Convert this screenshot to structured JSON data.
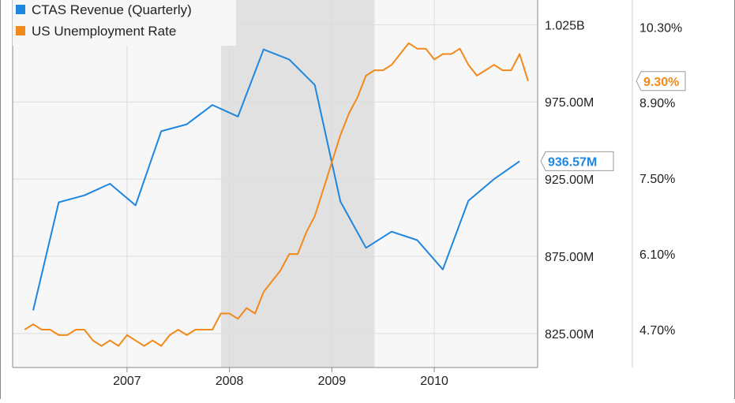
{
  "chart_data": {
    "type": "line",
    "legend": {
      "placement": "top-left",
      "items": [
        {
          "label": "CTAS Revenue (Quarterly)",
          "color": "#1f86e0"
        },
        {
          "label": "US Unemployment Rate",
          "color": "#f28a1b"
        }
      ]
    },
    "recession_shading": {
      "from": "2007-12",
      "to": "2009-06"
    },
    "x_tick_labels": [
      "2007",
      "2008",
      "2009",
      "2010"
    ],
    "x_range": [
      "2006-02",
      "2010-12"
    ],
    "left_axis": {
      "tick_labels": [
        "1.025B",
        "975.00M",
        "925.00M",
        "875.00M",
        "825.00M"
      ],
      "ticks": [
        1025,
        975,
        925,
        875,
        825
      ],
      "ylim_musd": [
        803,
        1041
      ]
    },
    "right_axis": {
      "tick_labels": [
        "10.30%",
        "8.90%",
        "7.50%",
        "6.10%",
        "4.70%"
      ],
      "ticks": [
        10.3,
        8.9,
        7.5,
        6.1,
        4.7
      ],
      "ylim_pct": [
        4.0,
        10.8
      ]
    },
    "series": [
      {
        "name": "CTAS Revenue (Quarterly)",
        "color": "#1f86e0",
        "unit": "USD millions",
        "axis": "left",
        "end_label": "936.57M",
        "points": [
          [
            "2006-02",
            840.0
          ],
          [
            "2006-05",
            910.0
          ],
          [
            "2006-08",
            914.5
          ],
          [
            "2006-11",
            922.0
          ],
          [
            "2007-02",
            908.0
          ],
          [
            "2007-05",
            956.0
          ],
          [
            "2007-08",
            960.5
          ],
          [
            "2007-11",
            973.0
          ],
          [
            "2008-02",
            965.5
          ],
          [
            "2008-05",
            1009.0
          ],
          [
            "2008-08",
            1002.5
          ],
          [
            "2008-11",
            986.0
          ],
          [
            "2009-02",
            910.5
          ],
          [
            "2009-05",
            880.5
          ],
          [
            "2009-08",
            891.0
          ],
          [
            "2009-11",
            885.5
          ],
          [
            "2010-02",
            866.5
          ],
          [
            "2010-05",
            911.0
          ],
          [
            "2010-08",
            925.0
          ],
          [
            "2010-11",
            936.6
          ]
        ]
      },
      {
        "name": "US Unemployment Rate",
        "color": "#f28a1b",
        "unit": "percent",
        "axis": "right",
        "end_label": "9.30%",
        "points": [
          [
            "2006-01",
            4.7
          ],
          [
            "2006-02",
            4.8
          ],
          [
            "2006-03",
            4.7
          ],
          [
            "2006-04",
            4.7
          ],
          [
            "2006-05",
            4.6
          ],
          [
            "2006-06",
            4.6
          ],
          [
            "2006-07",
            4.7
          ],
          [
            "2006-08",
            4.7
          ],
          [
            "2006-09",
            4.5
          ],
          [
            "2006-10",
            4.4
          ],
          [
            "2006-11",
            4.5
          ],
          [
            "2006-12",
            4.4
          ],
          [
            "2007-01",
            4.6
          ],
          [
            "2007-02",
            4.5
          ],
          [
            "2007-03",
            4.4
          ],
          [
            "2007-04",
            4.5
          ],
          [
            "2007-05",
            4.4
          ],
          [
            "2007-06",
            4.6
          ],
          [
            "2007-07",
            4.7
          ],
          [
            "2007-08",
            4.6
          ],
          [
            "2007-09",
            4.7
          ],
          [
            "2007-10",
            4.7
          ],
          [
            "2007-11",
            4.7
          ],
          [
            "2007-12",
            5.0
          ],
          [
            "2008-01",
            5.0
          ],
          [
            "2008-02",
            4.9
          ],
          [
            "2008-03",
            5.1
          ],
          [
            "2008-04",
            5.0
          ],
          [
            "2008-05",
            5.4
          ],
          [
            "2008-06",
            5.6
          ],
          [
            "2008-07",
            5.8
          ],
          [
            "2008-08",
            6.1
          ],
          [
            "2008-09",
            6.1
          ],
          [
            "2008-10",
            6.5
          ],
          [
            "2008-11",
            6.8
          ],
          [
            "2008-12",
            7.3
          ],
          [
            "2009-01",
            7.8
          ],
          [
            "2009-02",
            8.3
          ],
          [
            "2009-03",
            8.7
          ],
          [
            "2009-04",
            9.0
          ],
          [
            "2009-05",
            9.4
          ],
          [
            "2009-06",
            9.5
          ],
          [
            "2009-07",
            9.5
          ],
          [
            "2009-08",
            9.6
          ],
          [
            "2009-09",
            9.8
          ],
          [
            "2009-10",
            10.0
          ],
          [
            "2009-11",
            9.9
          ],
          [
            "2009-12",
            9.9
          ],
          [
            "2010-01",
            9.7
          ],
          [
            "2010-02",
            9.8
          ],
          [
            "2010-03",
            9.8
          ],
          [
            "2010-04",
            9.9
          ],
          [
            "2010-05",
            9.6
          ],
          [
            "2010-06",
            9.4
          ],
          [
            "2010-07",
            9.5
          ],
          [
            "2010-08",
            9.6
          ],
          [
            "2010-09",
            9.5
          ],
          [
            "2010-10",
            9.5
          ],
          [
            "2010-11",
            9.8
          ],
          [
            "2010-12",
            9.3
          ]
        ]
      }
    ]
  }
}
